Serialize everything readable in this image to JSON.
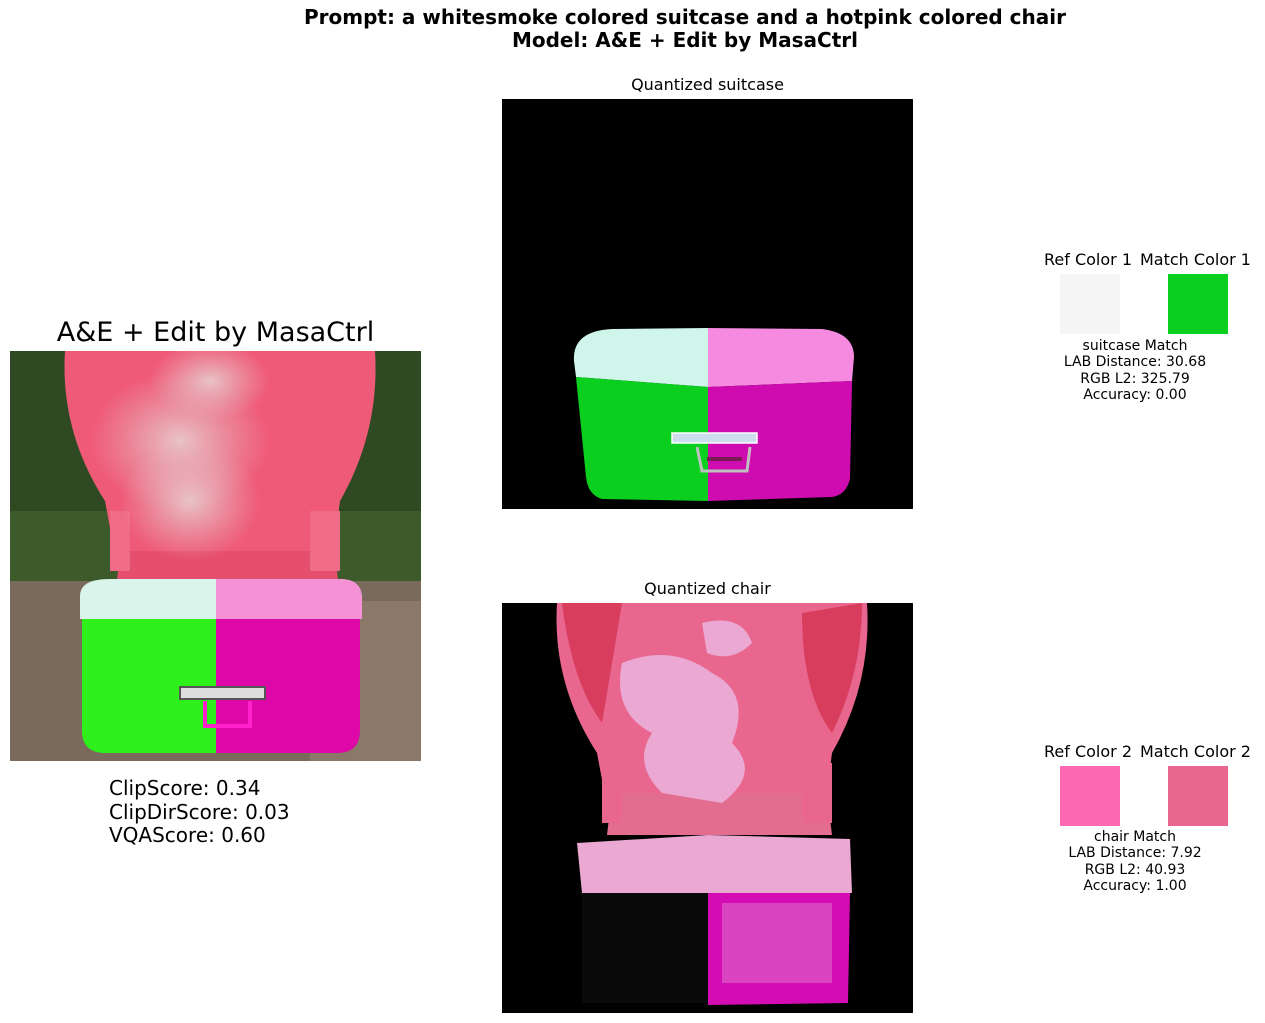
{
  "suptitle": {
    "line1": "Prompt: a whitesmoke colored suitcase and a hotpink colored chair",
    "line2": "Model: A&E + Edit by MasaCtrl"
  },
  "main_image": {
    "title": "A&E + Edit by MasaCtrl"
  },
  "metrics": {
    "clip": "ClipScore: 0.34",
    "clipdir": "ClipDirScore: 0.03",
    "vqa": "VQAScore: 0.60"
  },
  "panels": {
    "suitcase": {
      "title": "Quantized suitcase"
    },
    "chair": {
      "title": "Quantized chair"
    }
  },
  "matches": [
    {
      "ref_label": "Ref Color 1",
      "match_label": "Match Color 1",
      "ref_color": "#f5f5f5",
      "match_color": "#0acf1f",
      "line1": "suitcase Match",
      "line2": "LAB Distance: 30.68",
      "line3": "RGB L2: 325.79",
      "line4": "Accuracy: 0.00"
    },
    {
      "ref_label": "Ref Color 2",
      "match_label": "Match Color 2",
      "ref_color": "#ff69b4",
      "match_color": "#e9668f",
      "line1": "chair Match",
      "line2": "LAB Distance: 7.92",
      "line3": "RGB L2: 40.93",
      "line4": "Accuracy: 1.00"
    }
  ]
}
